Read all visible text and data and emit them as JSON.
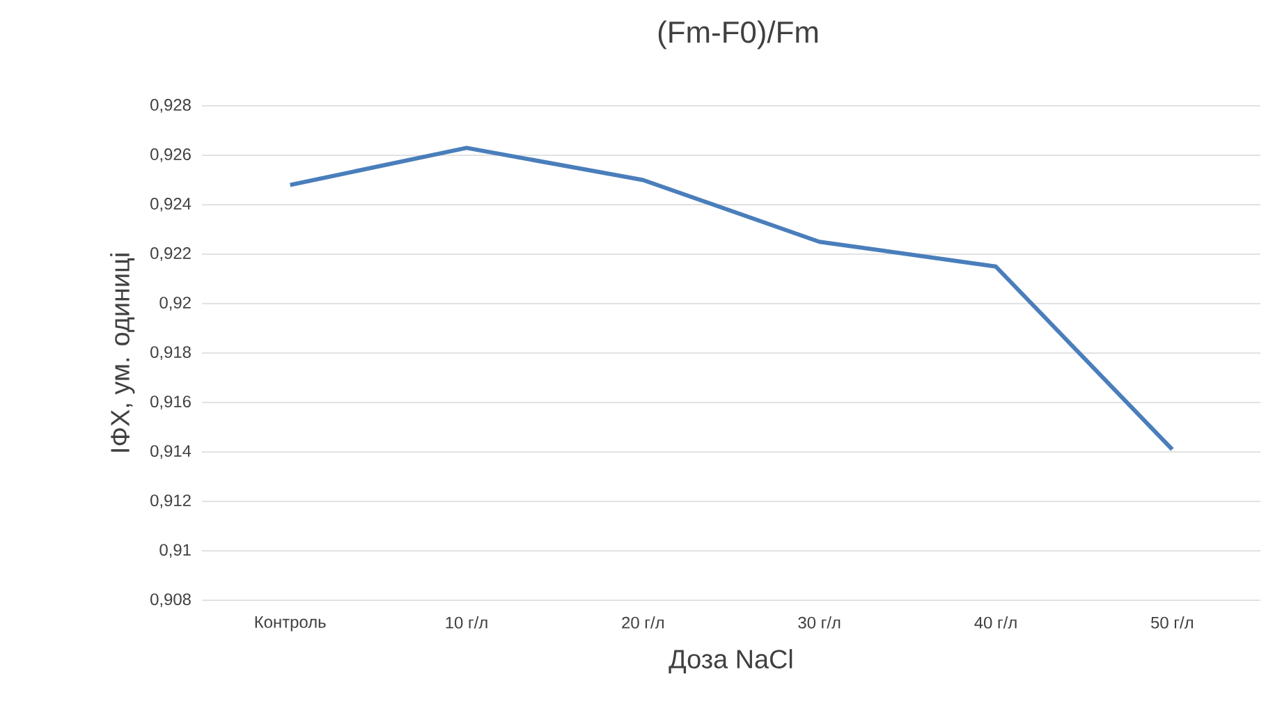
{
  "chart_data": {
    "type": "line",
    "title": "(Fm-F0)/Fm",
    "xlabel": "Доза NaCl",
    "ylabel": "ІФХ, ум. одиниці",
    "categories": [
      "Контроль",
      "10 г/л",
      "20 г/л",
      "30 г/л",
      "40 г/л",
      "50 г/л"
    ],
    "series": [
      {
        "color": "#4a7ebb",
        "values": [
          0.9248,
          0.9263,
          0.925,
          0.9225,
          0.9215,
          0.9141
        ]
      }
    ],
    "ylim": [
      0.908,
      0.928
    ],
    "yticks": [
      {
        "value": 0.908,
        "label": "0,908"
      },
      {
        "value": 0.91,
        "label": "0,91"
      },
      {
        "value": 0.912,
        "label": "0,912"
      },
      {
        "value": 0.914,
        "label": "0,914"
      },
      {
        "value": 0.916,
        "label": "0,916"
      },
      {
        "value": 0.918,
        "label": "0,918"
      },
      {
        "value": 0.92,
        "label": "0,92"
      },
      {
        "value": 0.922,
        "label": "0,922"
      },
      {
        "value": 0.924,
        "label": "0,924"
      },
      {
        "value": 0.926,
        "label": "0,926"
      },
      {
        "value": 0.928,
        "label": "0,928"
      }
    ],
    "grid": "y",
    "marker": "none",
    "line_style": "solid"
  }
}
